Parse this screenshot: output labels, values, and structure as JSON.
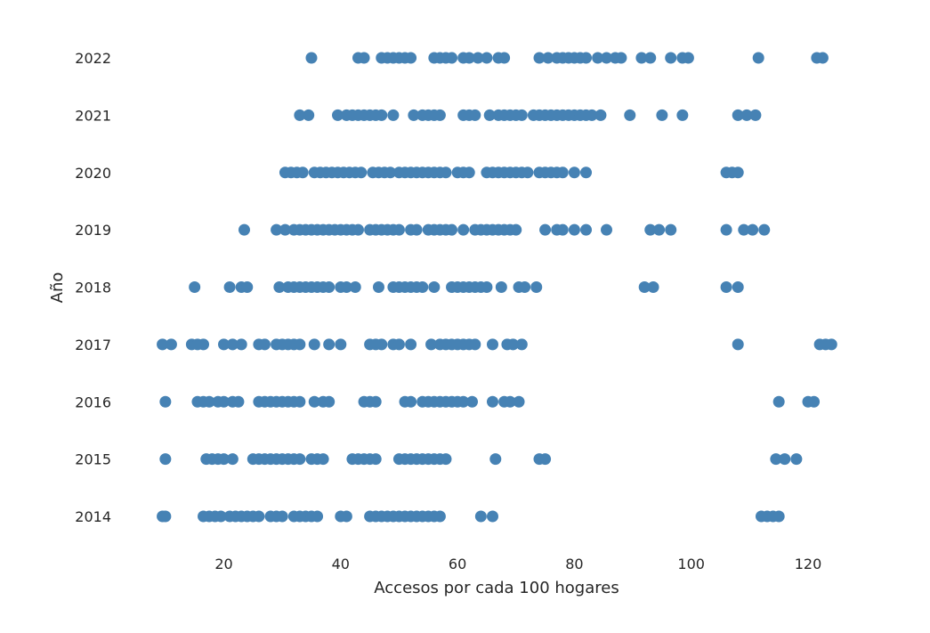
{
  "chart_data": {
    "type": "scatter",
    "xlabel": "Accesos por cada 100 hogares",
    "ylabel": "Año",
    "xlim": [
      8,
      128
    ],
    "xticks": [
      20,
      40,
      60,
      80,
      100,
      120
    ],
    "categories": [
      "2014",
      "2015",
      "2016",
      "2017",
      "2018",
      "2019",
      "2020",
      "2021",
      "2022"
    ],
    "marker_color": "#4682b4",
    "grid": false,
    "series": [
      {
        "year": "2014",
        "x": [
          9.5,
          10.0,
          16.5,
          17.5,
          18.5,
          19.5,
          21.0,
          22.0,
          23.0,
          24.0,
          25.0,
          26.0,
          28.0,
          29.0,
          30.0,
          32.0,
          33.0,
          34.0,
          35.0,
          36.0,
          40.0,
          41.0,
          45.0,
          46.0,
          47.0,
          48.0,
          49.0,
          50.0,
          51.0,
          52.0,
          53.0,
          54.0,
          55.0,
          56.0,
          57.0,
          64.0,
          66.0,
          112.0,
          113.0,
          114.0,
          115.0
        ]
      },
      {
        "year": "2015",
        "x": [
          10.0,
          17.0,
          18.0,
          19.0,
          20.0,
          21.5,
          25.0,
          26.0,
          27.0,
          28.0,
          29.0,
          30.0,
          31.0,
          32.0,
          33.0,
          35.0,
          36.0,
          37.0,
          42.0,
          43.0,
          44.0,
          45.0,
          46.0,
          50.0,
          51.0,
          52.0,
          53.0,
          54.0,
          55.0,
          56.0,
          57.0,
          58.0,
          66.5,
          74.0,
          75.0,
          114.5,
          116.0,
          118.0
        ]
      },
      {
        "year": "2016",
        "x": [
          10.0,
          15.5,
          16.5,
          17.5,
          19.0,
          20.0,
          21.5,
          22.5,
          26.0,
          27.0,
          28.0,
          29.0,
          30.0,
          31.0,
          32.0,
          33.0,
          35.5,
          37.0,
          38.0,
          44.0,
          45.0,
          46.0,
          51.0,
          52.0,
          54.0,
          55.0,
          56.0,
          57.0,
          58.0,
          59.0,
          60.0,
          61.0,
          62.5,
          66.0,
          68.0,
          69.0,
          70.5,
          115.0,
          120.0,
          121.0
        ]
      },
      {
        "year": "2017",
        "x": [
          9.5,
          11.0,
          14.5,
          15.5,
          16.5,
          20.0,
          21.5,
          23.0,
          26.0,
          27.0,
          29.0,
          30.0,
          31.0,
          32.0,
          33.0,
          35.5,
          38.0,
          40.0,
          45.0,
          46.0,
          47.0,
          49.0,
          50.0,
          52.0,
          55.5,
          57.0,
          58.0,
          59.0,
          60.0,
          61.0,
          62.0,
          63.0,
          66.0,
          68.5,
          69.5,
          71.0,
          108.0,
          122.0,
          123.0,
          124.0
        ]
      },
      {
        "year": "2018",
        "x": [
          15.0,
          21.0,
          23.0,
          24.0,
          29.5,
          31.0,
          32.0,
          33.0,
          34.0,
          35.0,
          36.0,
          37.0,
          38.0,
          40.0,
          41.0,
          42.5,
          46.5,
          49.0,
          50.0,
          51.0,
          52.0,
          53.0,
          54.0,
          56.0,
          59.0,
          60.0,
          61.0,
          62.0,
          63.0,
          64.0,
          65.0,
          67.5,
          70.5,
          71.5,
          73.5,
          92.0,
          93.5,
          106.0,
          108.0
        ]
      },
      {
        "year": "2019",
        "x": [
          23.5,
          29.0,
          30.5,
          32.0,
          33.0,
          34.0,
          35.0,
          36.0,
          37.0,
          38.0,
          39.0,
          40.0,
          41.0,
          42.0,
          43.0,
          45.0,
          46.0,
          47.0,
          48.0,
          49.0,
          50.0,
          52.0,
          53.0,
          55.0,
          56.0,
          57.0,
          58.0,
          59.0,
          61.0,
          63.0,
          64.0,
          65.0,
          66.0,
          67.0,
          68.0,
          69.0,
          70.0,
          75.0,
          77.0,
          78.0,
          80.0,
          82.0,
          85.5,
          93.0,
          94.5,
          96.5,
          106.0,
          109.0,
          110.5,
          112.5
        ]
      },
      {
        "year": "2020",
        "x": [
          30.5,
          31.5,
          32.5,
          33.5,
          35.5,
          36.5,
          37.5,
          38.5,
          39.5,
          40.5,
          41.5,
          42.5,
          43.5,
          45.5,
          46.5,
          47.5,
          48.5,
          50.0,
          51.0,
          52.0,
          53.0,
          54.0,
          55.0,
          56.0,
          57.0,
          58.0,
          60.0,
          61.0,
          62.0,
          65.0,
          66.0,
          67.0,
          68.0,
          69.0,
          70.0,
          71.0,
          72.0,
          74.0,
          75.0,
          76.0,
          77.0,
          78.0,
          80.0,
          82.0,
          106.0,
          107.0,
          108.0
        ]
      },
      {
        "year": "2021",
        "x": [
          33.0,
          34.5,
          39.5,
          41.0,
          42.0,
          43.0,
          44.0,
          45.0,
          46.0,
          47.0,
          49.0,
          52.5,
          54.0,
          55.0,
          56.0,
          57.0,
          61.0,
          62.0,
          63.0,
          65.5,
          67.0,
          68.0,
          69.0,
          70.0,
          71.0,
          73.0,
          74.0,
          75.0,
          76.0,
          77.0,
          78.0,
          79.0,
          80.0,
          81.0,
          82.0,
          83.0,
          84.5,
          89.5,
          95.0,
          98.5,
          108.0,
          109.5,
          111.0
        ]
      },
      {
        "year": "2022",
        "x": [
          35.0,
          43.0,
          44.0,
          47.0,
          48.0,
          49.0,
          50.0,
          51.0,
          52.0,
          56.0,
          57.0,
          58.0,
          59.0,
          61.0,
          62.0,
          63.5,
          65.0,
          67.0,
          68.0,
          74.0,
          75.5,
          77.0,
          78.0,
          79.0,
          80.0,
          81.0,
          82.0,
          84.0,
          85.5,
          87.0,
          88.0,
          91.5,
          93.0,
          96.5,
          98.5,
          99.5,
          111.5,
          121.5,
          122.5
        ]
      }
    ]
  }
}
